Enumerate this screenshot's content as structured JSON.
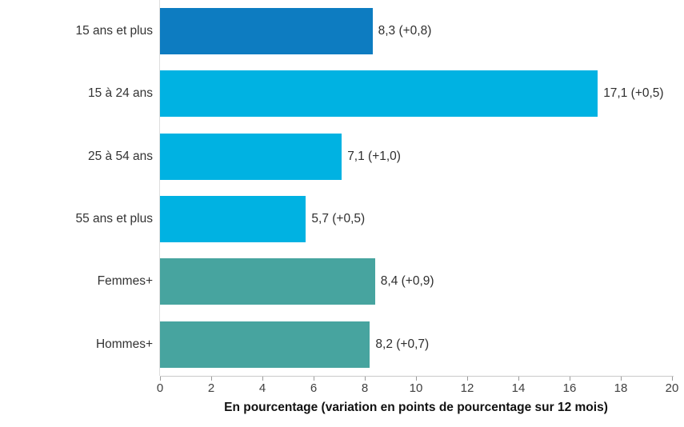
{
  "chart_data": {
    "type": "bar",
    "orientation": "horizontal",
    "title": "",
    "categories": [
      "15 ans et plus",
      "15 à 24 ans",
      "25 à 54 ans",
      "55 ans et plus",
      "Femmes+",
      "Hommes+"
    ],
    "values": [
      8.3,
      17.1,
      7.1,
      5.7,
      8.4,
      8.2
    ],
    "value_labels": [
      "8,3 (+0,8)",
      "17,1 (+0,5)",
      "7,1 (+1,0)",
      "5,7 (+0,5)",
      "8,4 (+0,9)",
      "8,2 (+0,7)"
    ],
    "bar_colors": [
      "#0d7cc1",
      "#00b2e2",
      "#00b2e2",
      "#00b2e2",
      "#47a49f",
      "#47a49f"
    ],
    "xlabel": "En pourcentage (variation en points de pourcentage sur 12 mois)",
    "ylabel": "",
    "xlim": [
      0,
      20
    ],
    "x_ticks": [
      0,
      2,
      4,
      6,
      8,
      10,
      12,
      14,
      16,
      18,
      20
    ],
    "grid": false,
    "legend": false
  },
  "colors": {
    "zero_line": "#dedede",
    "axis_line": "#c9c9c9",
    "tick_mark": "#9a9a9a",
    "tick_text": "#404040",
    "category_text": "#333333",
    "value_text": "#2e2e2e",
    "axis_title_text": "#111111"
  }
}
